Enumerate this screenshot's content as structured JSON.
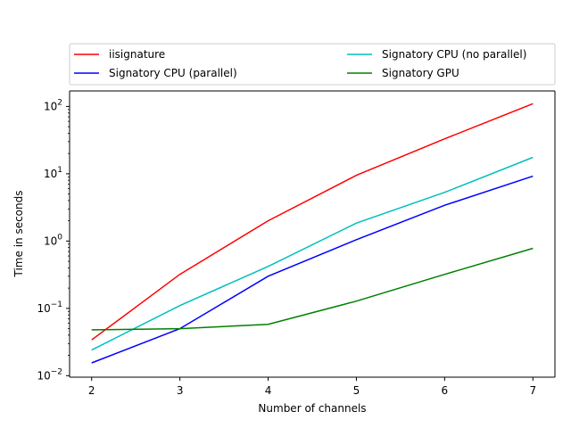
{
  "chart_data": {
    "type": "line",
    "xlabel": "Number of channels",
    "ylabel": "Time in seconds",
    "x": [
      2,
      3,
      4,
      5,
      6,
      7
    ],
    "xlim": [
      1.75,
      7.25
    ],
    "ylim": [
      0.0095,
      170
    ],
    "yscale": "log",
    "x_ticks": [
      "2",
      "3",
      "4",
      "5",
      "6",
      "7"
    ],
    "y_ticks": [
      {
        "value": 0.01,
        "base": "10",
        "exp": "−2"
      },
      {
        "value": 0.1,
        "base": "10",
        "exp": "−1"
      },
      {
        "value": 1,
        "base": "10",
        "exp": "0"
      },
      {
        "value": 10,
        "base": "10",
        "exp": "1"
      },
      {
        "value": 100,
        "base": "10",
        "exp": "2"
      }
    ],
    "legend_position": "top, above plot, two columns",
    "grid": false,
    "series": [
      {
        "name": "iisignature",
        "color": "#ff0000",
        "values": [
          0.034,
          0.32,
          2.0,
          9.5,
          33,
          110
        ]
      },
      {
        "name": "Signatory CPU (parallel)",
        "color": "#0000ff",
        "values": [
          0.0155,
          0.05,
          0.3,
          1.05,
          3.4,
          9.2
        ]
      },
      {
        "name": "Signatory CPU (no parallel)",
        "color": "#00bfbf",
        "values": [
          0.024,
          0.11,
          0.42,
          1.85,
          5.3,
          17.5
        ]
      },
      {
        "name": "Signatory GPU",
        "color": "#008000",
        "values": [
          0.048,
          0.05,
          0.058,
          0.128,
          0.32,
          0.78
        ]
      }
    ]
  }
}
